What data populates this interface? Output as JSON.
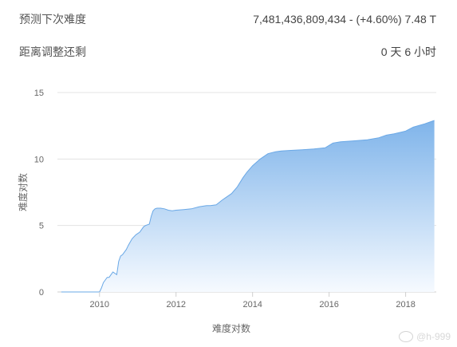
{
  "stats": {
    "next_difficulty_label": "预测下次难度",
    "next_difficulty_value": "7,481,436,809,434 - (+4.60%) 7.48 T",
    "time_left_label": "距离调整还剩",
    "time_left_value": "0 天 6 小时"
  },
  "watermark": {
    "icon": "weibo-icon",
    "text": "@h-999"
  },
  "colors": {
    "fill_top": "#7fb4ea",
    "fill_bottom": "#f6faff",
    "line": "#6aa8e6"
  },
  "chart_data": {
    "type": "area",
    "title": "",
    "xlabel": "难度对数",
    "ylabel": "难度对数",
    "xlim": [
      2008.9,
      2018.8
    ],
    "ylim": [
      0,
      15
    ],
    "x_ticks": [
      2010,
      2012,
      2014,
      2016,
      2018
    ],
    "y_ticks": [
      0,
      5,
      10,
      15
    ],
    "grid": true,
    "legend": "none",
    "x": [
      2009.0,
      2010.0,
      2010.05,
      2010.1,
      2010.15,
      2010.2,
      2010.25,
      2010.3,
      2010.35,
      2010.45,
      2010.5,
      2010.55,
      2010.6,
      2010.7,
      2010.75,
      2010.85,
      2010.95,
      2011.05,
      2011.15,
      2011.2,
      2011.3,
      2011.35,
      2011.4,
      2011.45,
      2011.5,
      2011.6,
      2011.7,
      2011.8,
      2011.9,
      2012.0,
      2012.2,
      2012.4,
      2012.6,
      2012.8,
      2012.9,
      2013.05,
      2013.2,
      2013.3,
      2013.45,
      2013.6,
      2013.75,
      2013.85,
      2014.0,
      2014.2,
      2014.4,
      2014.6,
      2014.75,
      2015.0,
      2015.3,
      2015.6,
      2015.9,
      2016.1,
      2016.3,
      2016.6,
      2017.0,
      2017.3,
      2017.5,
      2017.7,
      2018.0,
      2018.2,
      2018.5,
      2018.75
    ],
    "y": [
      0.0,
      0.0,
      0.3,
      0.7,
      0.9,
      1.1,
      1.1,
      1.3,
      1.5,
      1.3,
      2.3,
      2.7,
      2.8,
      3.2,
      3.5,
      4.0,
      4.3,
      4.5,
      4.9,
      5.0,
      5.1,
      5.7,
      6.1,
      6.25,
      6.3,
      6.3,
      6.25,
      6.15,
      6.1,
      6.15,
      6.2,
      6.25,
      6.4,
      6.5,
      6.5,
      6.55,
      6.9,
      7.1,
      7.4,
      7.9,
      8.6,
      9.0,
      9.5,
      10.0,
      10.4,
      10.55,
      10.6,
      10.65,
      10.7,
      10.75,
      10.85,
      11.2,
      11.3,
      11.35,
      11.45,
      11.6,
      11.8,
      11.9,
      12.1,
      12.4,
      12.65,
      12.9
    ]
  }
}
